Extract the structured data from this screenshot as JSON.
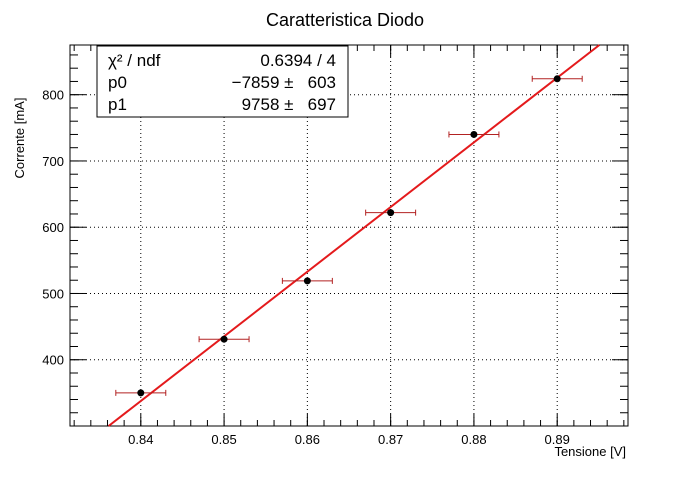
{
  "chart_data": {
    "type": "scatter",
    "title": "Caratteristica Diodo",
    "xlabel": "Tensione [V]",
    "ylabel": "Corrente [mA]",
    "xlim": [
      0.8315,
      0.8985
    ],
    "ylim": [
      300,
      875
    ],
    "x_ticks": [
      0.84,
      0.85,
      0.86,
      0.87,
      0.88,
      0.89
    ],
    "x_tick_labels": [
      "0.84",
      "0.85",
      "0.86",
      "0.87",
      "0.88",
      "0.89"
    ],
    "y_ticks": [
      400,
      500,
      600,
      700,
      800
    ],
    "y_tick_labels": [
      "400",
      "500",
      "600",
      "700",
      "800"
    ],
    "grid": true,
    "points": [
      {
        "x": 0.84,
        "y": 350,
        "xerr": 0.003
      },
      {
        "x": 0.85,
        "y": 431,
        "xerr": 0.003
      },
      {
        "x": 0.86,
        "y": 519,
        "xerr": 0.003
      },
      {
        "x": 0.87,
        "y": 622,
        "xerr": 0.003
      },
      {
        "x": 0.88,
        "y": 740,
        "xerr": 0.003
      },
      {
        "x": 0.89,
        "y": 824,
        "xerr": 0.003
      }
    ],
    "fit": {
      "p0": -7859,
      "p1": 9758,
      "color": "#e41a1c"
    },
    "marker_color": "#000000",
    "errorbar_color": "#b22222",
    "stats": {
      "chi2_label": "χ² / ndf",
      "chi2_value": "0.6394 / 4",
      "p0_label": "p0",
      "p0_value": "−7859 ±   603",
      "p1_label": "p1",
      "p1_value": "9758 ±   697"
    }
  }
}
